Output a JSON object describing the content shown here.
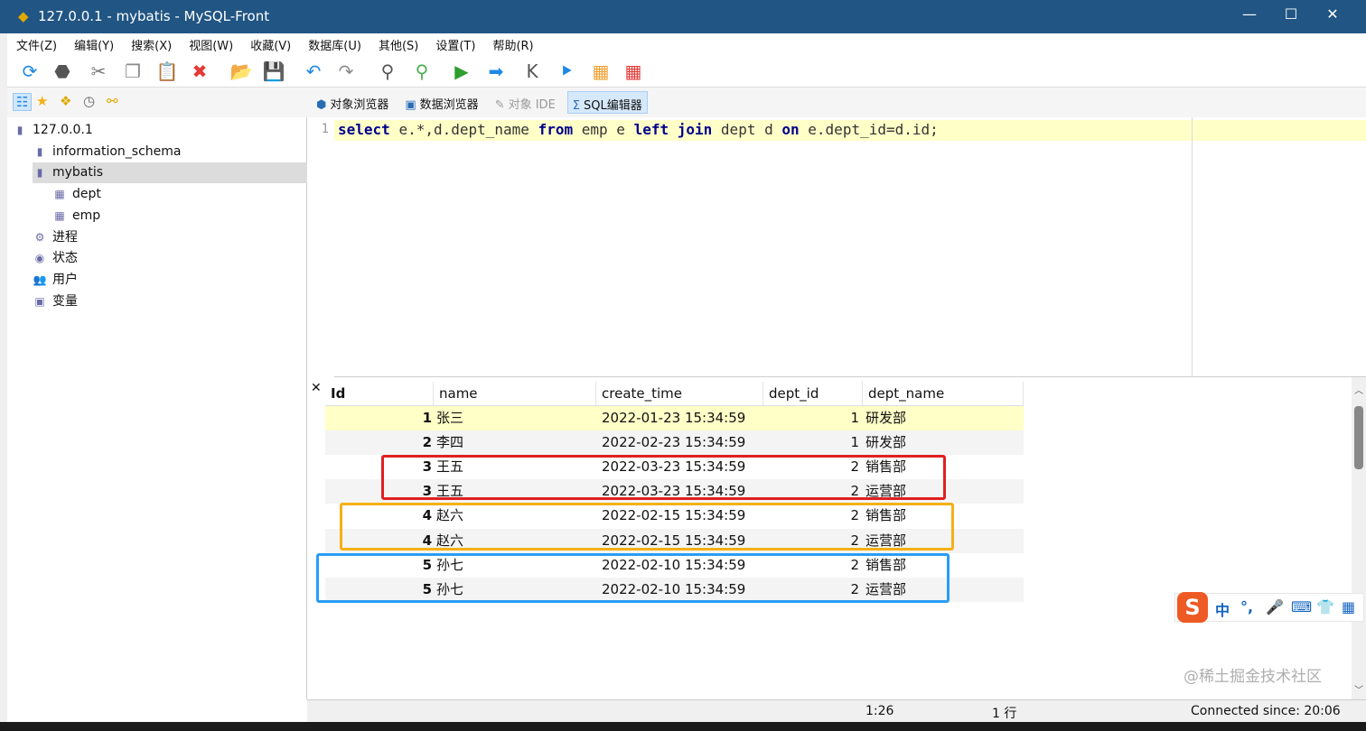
{
  "window": {
    "title": "127.0.0.1 - mybatis - MySQL-Front",
    "minimize": "—",
    "maximize": "☐",
    "close": "✕"
  },
  "menu": [
    "文件(Z)",
    "编辑(Y)",
    "搜索(X)",
    "视图(W)",
    "收藏(V)",
    "数据库(U)",
    "其他(S)",
    "设置(T)",
    "帮助(R)"
  ],
  "toolbar": [
    {
      "icon": "refresh-icon",
      "g": "⟳",
      "c": "#1e88e5"
    },
    {
      "icon": "stop-icon",
      "g": "⬣",
      "c": "#555"
    },
    {
      "icon": "cut-icon",
      "g": "✂",
      "c": "#777"
    },
    {
      "icon": "copy-icon",
      "g": "❐",
      "c": "#888"
    },
    {
      "icon": "paste-icon",
      "g": "📋",
      "c": "#888"
    },
    {
      "icon": "delete-icon",
      "g": "✖",
      "c": "#e53935"
    },
    {
      "icon": "open-icon",
      "g": "📂",
      "c": "#c9a400"
    },
    {
      "icon": "save-icon",
      "g": "💾",
      "c": "#1565c0"
    },
    {
      "icon": "undo-icon",
      "g": "↶",
      "c": "#1e88e5"
    },
    {
      "icon": "redo-icon",
      "g": "↷",
      "c": "#888"
    },
    {
      "icon": "find-icon",
      "g": "⚲",
      "c": "#555"
    },
    {
      "icon": "replace-icon",
      "g": "⚲",
      "c": "#4caf50"
    },
    {
      "icon": "run-icon",
      "g": "▶",
      "c": "#2e9e2e"
    },
    {
      "icon": "run-selection-icon",
      "g": "➡",
      "c": "#1e88e5"
    },
    {
      "icon": "first-icon",
      "g": "K",
      "c": "#555"
    },
    {
      "icon": "last-icon",
      "g": "⯈",
      "c": "#1e88e5"
    },
    {
      "icon": "insert-row-icon",
      "g": "▦",
      "c": "#f0a030"
    },
    {
      "icon": "delete-row-icon",
      "g": "▦",
      "c": "#e53935"
    }
  ],
  "nav": {
    "icons": [
      "tree-icon",
      "favorites-icon",
      "folders-icon",
      "history-icon",
      "bookmark-icon"
    ],
    "views": [
      {
        "label": "对象浏览器",
        "icon": "object-browser-icon",
        "active": false
      },
      {
        "label": "数据浏览器",
        "icon": "data-browser-icon",
        "active": false
      },
      {
        "label": "对象 IDE",
        "icon": "object-ide-icon",
        "active": false
      },
      {
        "label": "SQL编辑器",
        "icon": "sql-editor-icon",
        "active": true
      }
    ]
  },
  "tree": [
    {
      "label": "127.0.0.1",
      "level": 0,
      "icon": "server-icon"
    },
    {
      "label": "information_schema",
      "level": 1,
      "icon": "database-icon"
    },
    {
      "label": "mybatis",
      "level": 1,
      "icon": "database-icon",
      "selected": true
    },
    {
      "label": "dept",
      "level": 2,
      "icon": "table-icon"
    },
    {
      "label": "emp",
      "level": 2,
      "icon": "table-icon"
    },
    {
      "label": "进程",
      "level": 1,
      "icon": "processes-icon"
    },
    {
      "label": "状态",
      "level": 1,
      "icon": "status-icon"
    },
    {
      "label": "用户",
      "level": 1,
      "icon": "users-icon"
    },
    {
      "label": "变量",
      "level": 1,
      "icon": "variables-icon"
    }
  ],
  "editor": {
    "line": "1",
    "sql": "select e.*,d.dept_name from emp e left join dept d on e.dept_id=d.id;"
  },
  "results": {
    "close": "✕",
    "columns": [
      "Id",
      "name",
      "create_time",
      "dept_id",
      "dept_name"
    ],
    "rows": [
      [
        "1",
        "张三",
        "2022-01-23 15:34:59",
        "1",
        "研发部"
      ],
      [
        "2",
        "李四",
        "2022-02-23 15:34:59",
        "1",
        "研发部"
      ],
      [
        "3",
        "王五",
        "2022-03-23 15:34:59",
        "2",
        "销售部"
      ],
      [
        "3",
        "王五",
        "2022-03-23 15:34:59",
        "2",
        "运营部"
      ],
      [
        "4",
        "赵六",
        "2022-02-15 15:34:59",
        "2",
        "销售部"
      ],
      [
        "4",
        "赵六",
        "2022-02-15 15:34:59",
        "2",
        "运营部"
      ],
      [
        "5",
        "孙七",
        "2022-02-10 15:34:59",
        "2",
        "销售部"
      ],
      [
        "5",
        "孙七",
        "2022-02-10 15:34:59",
        "2",
        "运营部"
      ]
    ],
    "highlights": [
      "#e02020",
      "#f5b014",
      "#2a9df4"
    ]
  },
  "status": {
    "position": "1:26",
    "rows": "1 行",
    "connection": "Connected since: 20:06"
  },
  "ime": {
    "items": [
      "中",
      "°,",
      "🎤",
      "⌨",
      "👕",
      "▦"
    ],
    "logo": "S"
  },
  "watermark": "@稀土掘金技术社区"
}
